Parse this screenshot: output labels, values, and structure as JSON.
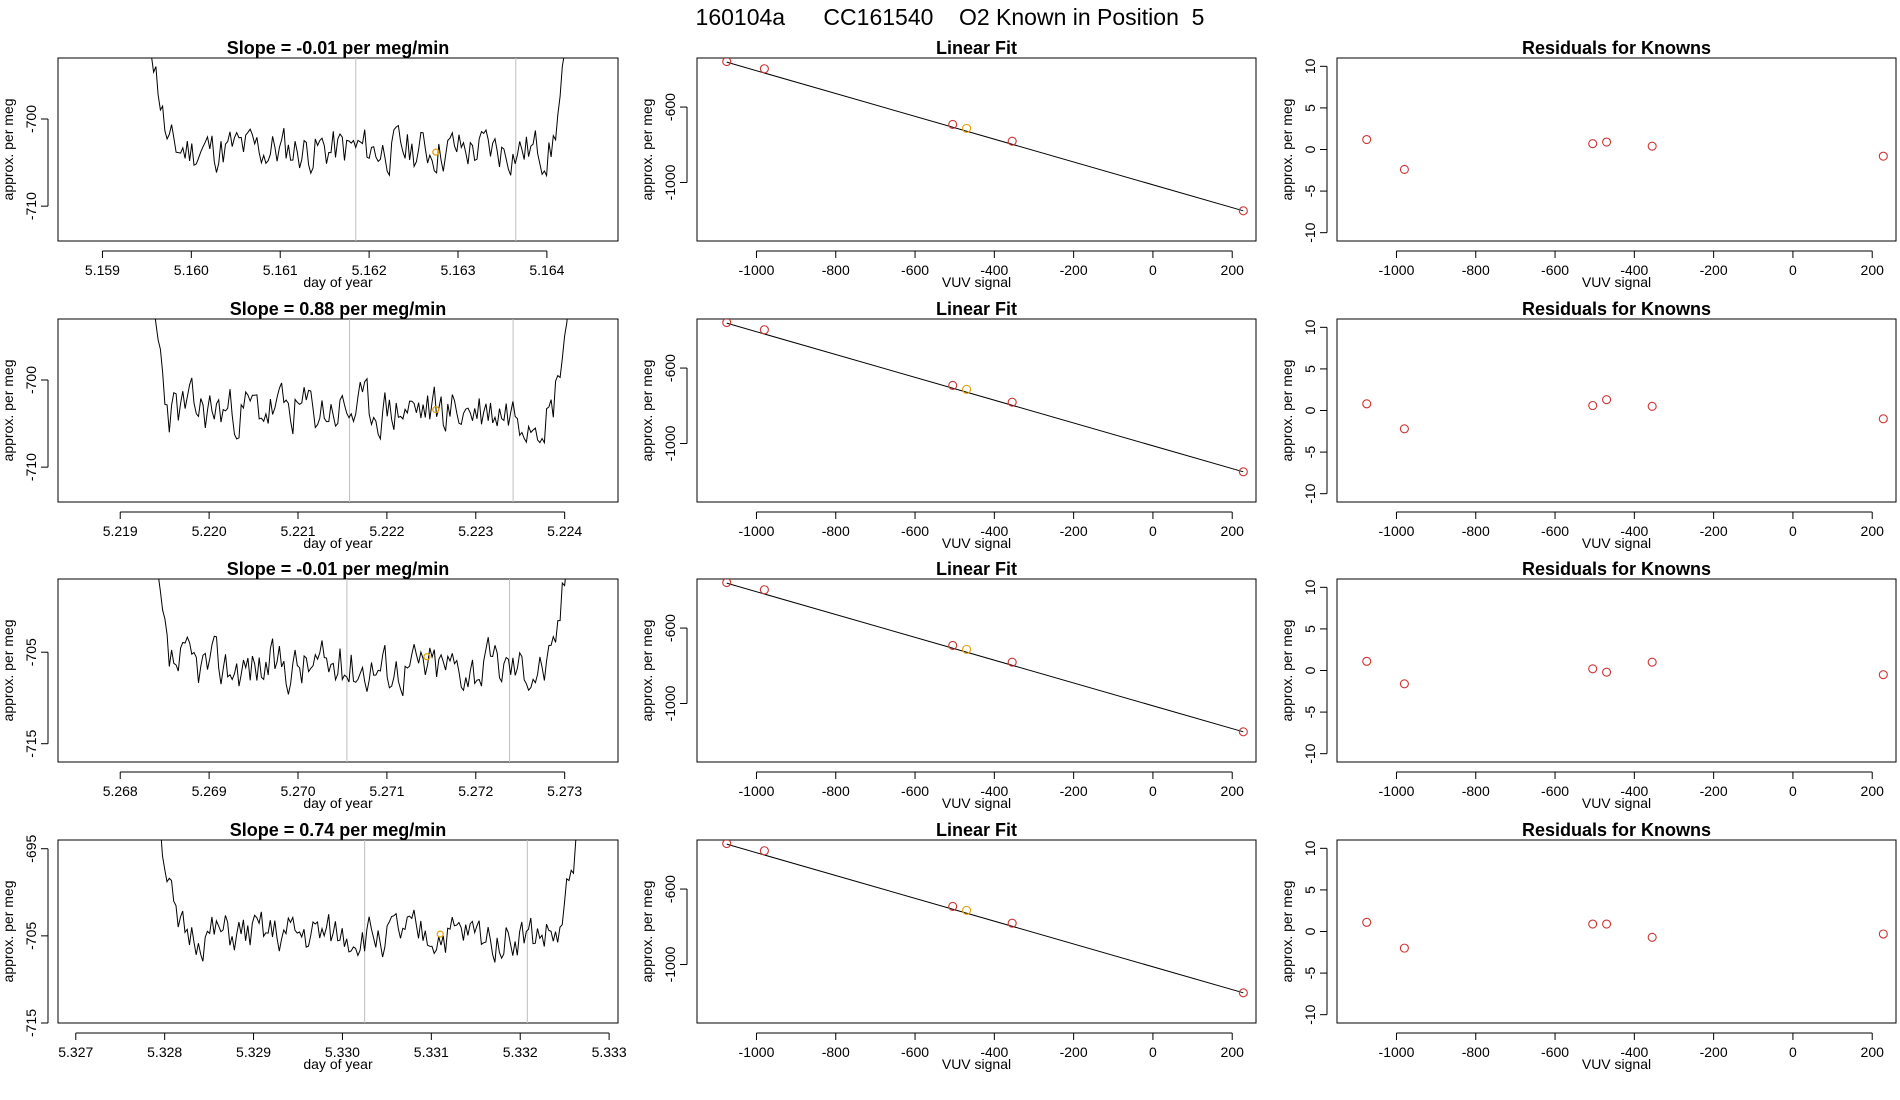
{
  "header": {
    "title": "160104a      CC161540    O2 Known in Position  5"
  },
  "colors": {
    "trace": "#000000",
    "highlight": "#e69f00",
    "residual": "#cd3333",
    "vline": "#bebebe"
  },
  "chart_data": [
    {
      "type": "line",
      "kind": "trace",
      "row": 0,
      "title": "Slope =  -0.01  per meg/min",
      "xlabel": "day of year",
      "ylabel": "approx. per meg",
      "xlim": [
        5.1585,
        5.1648
      ],
      "ylim": [
        -714,
        -693
      ],
      "xticks": [
        "5.159",
        "5.160",
        "5.161",
        "5.162",
        "5.163",
        "5.164"
      ],
      "yticks": [
        "-700",
        "-710"
      ],
      "vlines": [
        5.16185,
        5.16365
      ],
      "x_start": 5.1595,
      "x_end": 5.1643,
      "y_mean": -703.5,
      "amp": 2.6,
      "seed": 11,
      "highlight": {
        "x": 5.16275,
        "y": -703.8
      }
    },
    {
      "type": "line",
      "kind": "fit",
      "row": 0,
      "title": "Linear Fit",
      "xlabel": "VUV signal",
      "ylabel": "approx. per meg",
      "xlim": [
        -1150,
        260
      ],
      "ylim": [
        -1310,
        -340
      ],
      "xticks": [
        "-1000",
        "-800",
        "-600",
        "-400",
        "-200",
        "0",
        "200"
      ],
      "yticks": [
        "-600",
        "-1000"
      ],
      "points": [
        [
          -1075,
          -359
        ],
        [
          -980,
          -397
        ],
        [
          -505,
          -692
        ],
        [
          -470,
          -713
        ],
        [
          -355,
          -781
        ],
        [
          228,
          -1150
        ]
      ],
      "highlight_index": 3,
      "line": [
        [
          -1075,
          -362
        ],
        [
          228,
          -1150
        ]
      ]
    },
    {
      "type": "scatter",
      "kind": "resid",
      "row": 0,
      "title": "Residuals for Knowns",
      "xlabel": "VUV signal",
      "ylabel": "approx. per meg",
      "xlim": [
        -1150,
        260
      ],
      "ylim": [
        -11,
        11
      ],
      "xticks": [
        "-1000",
        "-800",
        "-600",
        "-400",
        "-200",
        "0",
        "200"
      ],
      "yticks": [
        "10",
        "5",
        "0",
        "-5",
        "-10"
      ],
      "points": [
        [
          -1075,
          1.2
        ],
        [
          -980,
          -2.4
        ],
        [
          -505,
          0.7
        ],
        [
          -470,
          0.9
        ],
        [
          -355,
          0.4
        ],
        [
          228,
          -0.8
        ]
      ]
    },
    {
      "type": "line",
      "kind": "trace",
      "row": 1,
      "title": "Slope =  0.88  per meg/min",
      "xlabel": "day of year",
      "ylabel": "approx. per meg",
      "xlim": [
        5.2183,
        5.2246
      ],
      "ylim": [
        -714,
        -693
      ],
      "xticks": [
        "5.219",
        "5.220",
        "5.221",
        "5.222",
        "5.223",
        "5.224"
      ],
      "yticks": [
        "-700",
        "-710"
      ],
      "vlines": [
        5.22158,
        5.22342
      ],
      "x_start": 5.2193,
      "x_end": 5.2241,
      "y_mean": -703.5,
      "amp": 2.9,
      "seed": 23,
      "highlight": {
        "x": 5.22255,
        "y": -703.4
      }
    },
    {
      "type": "line",
      "kind": "fit",
      "row": 1,
      "title": "Linear Fit",
      "xlabel": "VUV signal",
      "ylabel": "approx. per meg",
      "xlim": [
        -1150,
        260
      ],
      "ylim": [
        -1310,
        -340
      ],
      "xticks": [
        "-1000",
        "-800",
        "-600",
        "-400",
        "-200",
        "0",
        "200"
      ],
      "yticks": [
        "-600",
        "-1000"
      ],
      "points": [
        [
          -1075,
          -359
        ],
        [
          -980,
          -397
        ],
        [
          -505,
          -692
        ],
        [
          -470,
          -713
        ],
        [
          -355,
          -781
        ],
        [
          228,
          -1150
        ]
      ],
      "highlight_index": 3,
      "line": [
        [
          -1075,
          -362
        ],
        [
          228,
          -1150
        ]
      ]
    },
    {
      "type": "scatter",
      "kind": "resid",
      "row": 1,
      "title": "Residuals for Knowns",
      "xlabel": "VUV signal",
      "ylabel": "approx. per meg",
      "xlim": [
        -1150,
        260
      ],
      "ylim": [
        -11,
        11
      ],
      "xticks": [
        "-1000",
        "-800",
        "-600",
        "-400",
        "-200",
        "0",
        "200"
      ],
      "yticks": [
        "10",
        "5",
        "0",
        "-5",
        "-10"
      ],
      "points": [
        [
          -1075,
          0.8
        ],
        [
          -980,
          -2.2
        ],
        [
          -505,
          0.6
        ],
        [
          -470,
          1.3
        ],
        [
          -355,
          0.5
        ],
        [
          228,
          -1.0
        ]
      ]
    },
    {
      "type": "line",
      "kind": "trace",
      "row": 2,
      "title": "Slope =  -0.01  per meg/min",
      "xlabel": "day of year",
      "ylabel": "approx. per meg",
      "xlim": [
        5.2673,
        5.2736
      ],
      "ylim": [
        -717,
        -697
      ],
      "xticks": [
        "5.268",
        "5.269",
        "5.270",
        "5.271",
        "5.272",
        "5.273"
      ],
      "yticks": [
        "-705",
        "-715"
      ],
      "vlines": [
        5.27055,
        5.27238
      ],
      "x_start": 5.2683,
      "x_end": 5.2731,
      "y_mean": -706.5,
      "amp": 2.7,
      "seed": 37,
      "highlight": {
        "x": 5.27145,
        "y": -705.5
      }
    },
    {
      "type": "line",
      "kind": "fit",
      "row": 2,
      "title": "Linear Fit",
      "xlabel": "VUV signal",
      "ylabel": "approx. per meg",
      "xlim": [
        -1150,
        260
      ],
      "ylim": [
        -1310,
        -340
      ],
      "xticks": [
        "-1000",
        "-800",
        "-600",
        "-400",
        "-200",
        "0",
        "200"
      ],
      "yticks": [
        "-600",
        "-1000"
      ],
      "points": [
        [
          -1075,
          -359
        ],
        [
          -980,
          -397
        ],
        [
          -505,
          -692
        ],
        [
          -470,
          -713
        ],
        [
          -355,
          -781
        ],
        [
          228,
          -1150
        ]
      ],
      "highlight_index": 3,
      "line": [
        [
          -1075,
          -362
        ],
        [
          228,
          -1150
        ]
      ]
    },
    {
      "type": "scatter",
      "kind": "resid",
      "row": 2,
      "title": "Residuals for Knowns",
      "xlabel": "VUV signal",
      "ylabel": "approx. per meg",
      "xlim": [
        -1150,
        260
      ],
      "ylim": [
        -11,
        11
      ],
      "xticks": [
        "-1000",
        "-800",
        "-600",
        "-400",
        "-200",
        "0",
        "200"
      ],
      "yticks": [
        "10",
        "5",
        "0",
        "-5",
        "-10"
      ],
      "points": [
        [
          -1075,
          1.1
        ],
        [
          -980,
          -1.6
        ],
        [
          -505,
          0.2
        ],
        [
          -470,
          -0.2
        ],
        [
          -355,
          1.0
        ],
        [
          228,
          -0.5
        ]
      ]
    },
    {
      "type": "line",
      "kind": "trace",
      "row": 3,
      "title": "Slope =  0.74  per meg/min",
      "xlabel": "day of year",
      "ylabel": "approx. per meg",
      "xlim": [
        5.3268,
        5.3331
      ],
      "ylim": [
        -715,
        -694
      ],
      "xticks": [
        "5.327",
        "5.328",
        "5.329",
        "5.330",
        "5.331",
        "5.332",
        "5.333"
      ],
      "yticks": [
        "-695",
        "-705",
        "-715"
      ],
      "vlines": [
        5.33025,
        5.33208
      ],
      "x_start": 5.3279,
      "x_end": 5.3327,
      "y_mean": -705.0,
      "amp": 2.4,
      "seed": 51,
      "highlight": {
        "x": 5.3311,
        "y": -704.8
      }
    },
    {
      "type": "line",
      "kind": "fit",
      "row": 3,
      "title": "Linear Fit",
      "xlabel": "VUV signal",
      "ylabel": "approx. per meg",
      "xlim": [
        -1150,
        260
      ],
      "ylim": [
        -1310,
        -340
      ],
      "xticks": [
        "-1000",
        "-800",
        "-600",
        "-400",
        "-200",
        "0",
        "200"
      ],
      "yticks": [
        "-600",
        "-1000"
      ],
      "points": [
        [
          -1075,
          -359
        ],
        [
          -980,
          -397
        ],
        [
          -505,
          -692
        ],
        [
          -470,
          -713
        ],
        [
          -355,
          -781
        ],
        [
          228,
          -1150
        ]
      ],
      "highlight_index": 3,
      "line": [
        [
          -1075,
          -362
        ],
        [
          228,
          -1150
        ]
      ]
    },
    {
      "type": "scatter",
      "kind": "resid",
      "row": 3,
      "title": "Residuals for Knowns",
      "xlabel": "VUV signal",
      "ylabel": "approx. per meg",
      "xlim": [
        -1150,
        260
      ],
      "ylim": [
        -11,
        11
      ],
      "xticks": [
        "-1000",
        "-800",
        "-600",
        "-400",
        "-200",
        "0",
        "200"
      ],
      "yticks": [
        "10",
        "5",
        "0",
        "-5",
        "-10"
      ],
      "points": [
        [
          -1075,
          1.1
        ],
        [
          -980,
          -2.0
        ],
        [
          -505,
          0.9
        ],
        [
          -470,
          0.9
        ],
        [
          -355,
          -0.7
        ],
        [
          228,
          -0.3
        ]
      ]
    }
  ]
}
